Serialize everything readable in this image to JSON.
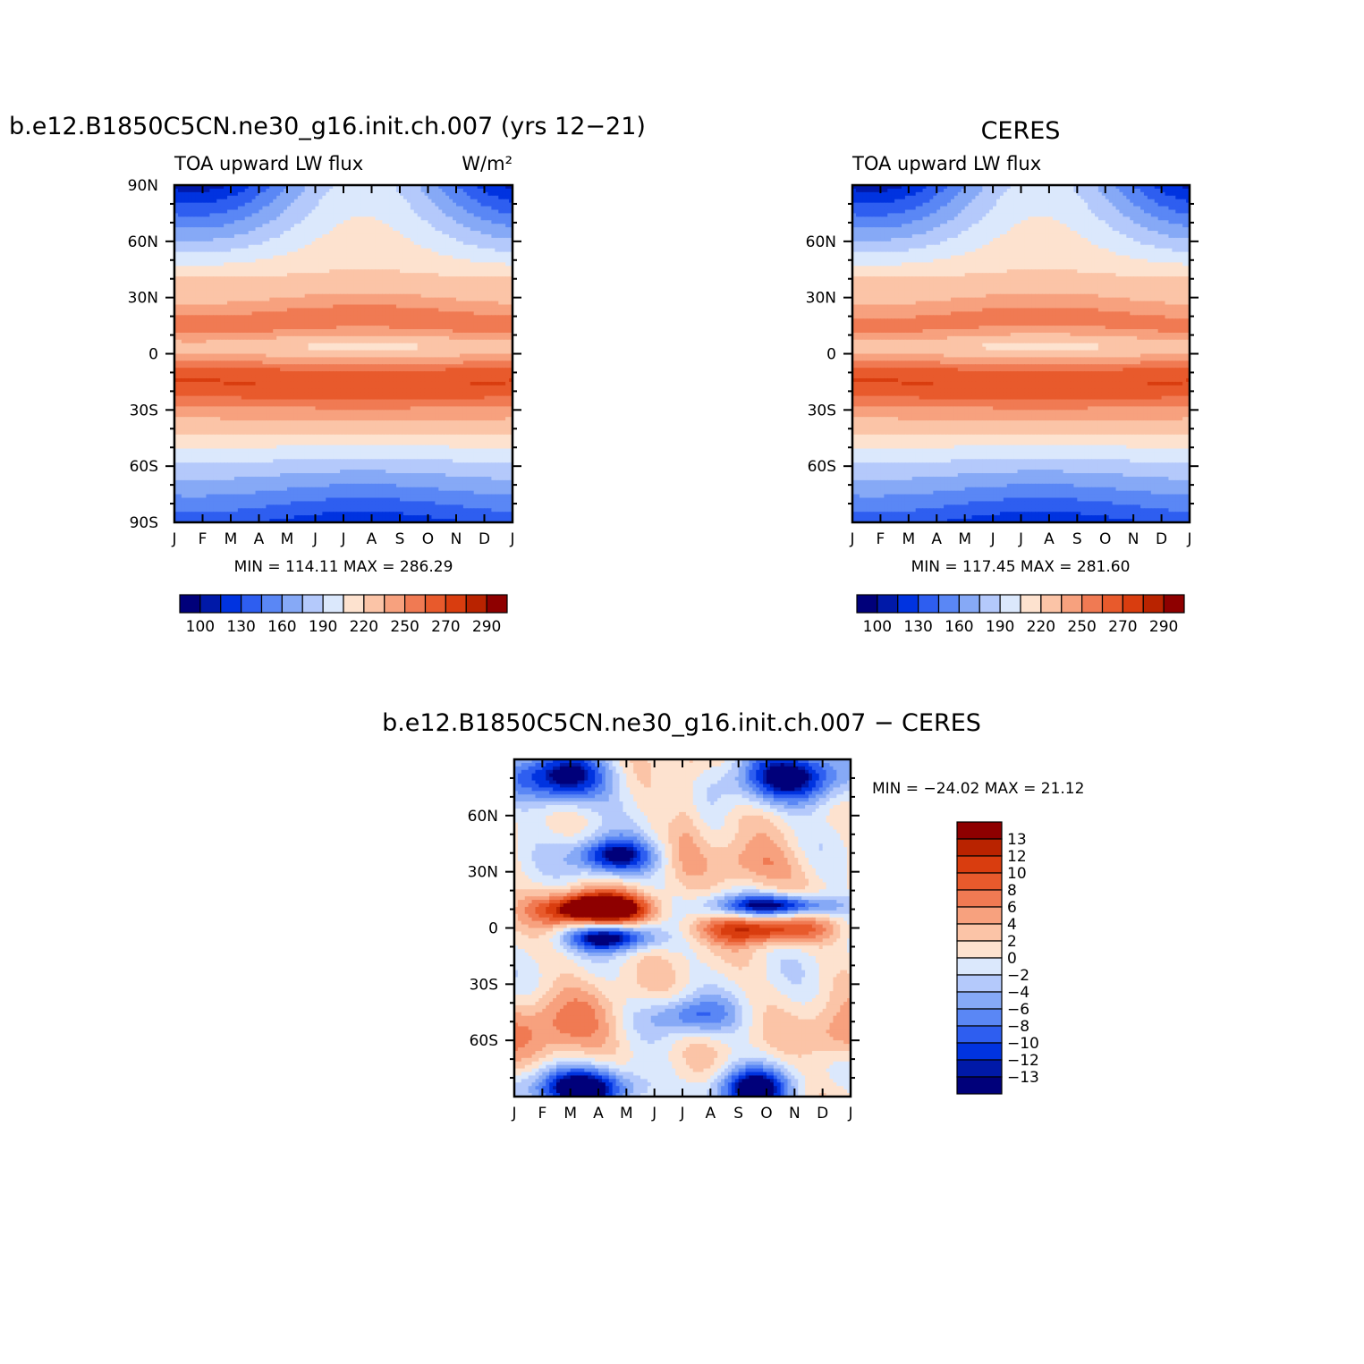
{
  "months": [
    "J",
    "F",
    "M",
    "A",
    "M",
    "J",
    "J",
    "A",
    "S",
    "O",
    "N",
    "D",
    "J"
  ],
  "colors": {
    "blue_scale": [
      "#00007a",
      "#0019a8",
      "#0033e0",
      "#2e5ef0",
      "#5a87f5",
      "#86a9f6",
      "#b4c9fb",
      "#dbe8fc"
    ],
    "red_scale": [
      "#fde2cf",
      "#fbc4a7",
      "#f7a17e",
      "#f07a53",
      "#e85a2c",
      "#d93d0f",
      "#b92300",
      "#8e0000"
    ],
    "frame": "#000000"
  },
  "panel_model": {
    "title": "b.e12.B1850C5CN.ne30_g16.init.ch.007 (yrs 12−21)",
    "left_label": "TOA upward LW flux",
    "units": "W/m²",
    "y_ticks": [
      "90N",
      "60N",
      "30N",
      "0",
      "30S",
      "60S",
      "90S"
    ],
    "stats": "MIN =  114.11  MAX =  286.29",
    "colorbar_labels": [
      "100",
      "130",
      "160",
      "190",
      "220",
      "250",
      "270",
      "290"
    ]
  },
  "panel_obs": {
    "title": "CERES",
    "left_label": "TOA upward LW flux",
    "y_ticks": [
      "60N",
      "30N",
      "0",
      "30S",
      "60S"
    ],
    "stats": "MIN =  117.45  MAX =  281.60",
    "colorbar_labels": [
      "100",
      "130",
      "160",
      "190",
      "220",
      "250",
      "270",
      "290"
    ]
  },
  "panel_diff": {
    "title": "b.e12.B1850C5CN.ne30_g16.init.ch.007 − CERES",
    "y_ticks": [
      "60N",
      "30N",
      "0",
      "30S",
      "60S"
    ],
    "stats": "MIN = −24.02  MAX =   21.12",
    "colorbar_labels": [
      "13",
      "12",
      "10",
      "8",
      "6",
      "4",
      "2",
      "0",
      "−2",
      "−4",
      "−6",
      "−8",
      "−10",
      "−12",
      "−13"
    ],
    "colorbar_colors": [
      "#8e0000",
      "#b92300",
      "#d93d0f",
      "#e85a2c",
      "#f07a53",
      "#f7a17e",
      "#fbc4a7",
      "#fde2cf",
      "#dbe8fc",
      "#b4c9fb",
      "#86a9f6",
      "#5a87f5",
      "#2e5ef0",
      "#0033e0",
      "#0019a8",
      "#00007a"
    ]
  },
  "chart_data": [
    {
      "type": "heatmap",
      "title": "b.e12.B1850C5CN.ne30_g16.init.ch.007 (yrs 12−21)",
      "variable": "TOA upward LW flux",
      "units": "W/m²",
      "x": [
        "J",
        "F",
        "M",
        "A",
        "M",
        "J",
        "J",
        "A",
        "S",
        "O",
        "N",
        "D",
        "J"
      ],
      "y_ticks": [
        "90N",
        "60N",
        "30N",
        "0",
        "30S",
        "60S",
        "90S"
      ],
      "ylim": [
        -90,
        90
      ],
      "min": 114.11,
      "max": 286.29,
      "levels": [
        100,
        115,
        130,
        145,
        160,
        175,
        190,
        205,
        220,
        235,
        250,
        260,
        270,
        280,
        290
      ],
      "latitudes": [
        90,
        80,
        70,
        60,
        50,
        40,
        30,
        20,
        10,
        0,
        -10,
        -20,
        -30,
        -40,
        -50,
        -60,
        -70,
        -80,
        -90
      ],
      "monthly_peak_lat": [
        -12,
        -10,
        -6,
        0,
        6,
        10,
        14,
        16,
        13,
        8,
        2,
        -6,
        -12
      ],
      "profile_by_lat": [
        160,
        175,
        195,
        210,
        230,
        250,
        265,
        280,
        240,
        250,
        262,
        275,
        262,
        245,
        228,
        205,
        178,
        150,
        125
      ]
    },
    {
      "type": "heatmap",
      "title": "CERES",
      "variable": "TOA upward LW flux",
      "units": "W/m²",
      "x": [
        "J",
        "F",
        "M",
        "A",
        "M",
        "J",
        "J",
        "A",
        "S",
        "O",
        "N",
        "D",
        "J"
      ],
      "y_ticks": [
        "60N",
        "30N",
        "0",
        "30S",
        "60S"
      ],
      "ylim": [
        -90,
        90
      ],
      "min": 117.45,
      "max": 281.6,
      "levels": [
        100,
        115,
        130,
        145,
        160,
        175,
        190,
        205,
        220,
        235,
        250,
        260,
        270,
        280,
        290
      ],
      "latitudes": [
        90,
        80,
        70,
        60,
        50,
        40,
        30,
        20,
        10,
        0,
        -10,
        -20,
        -30,
        -40,
        -50,
        -60,
        -70,
        -80,
        -90
      ],
      "profile_by_lat": [
        165,
        180,
        198,
        212,
        232,
        250,
        262,
        272,
        245,
        252,
        262,
        272,
        262,
        245,
        228,
        205,
        178,
        150,
        128
      ]
    },
    {
      "type": "heatmap",
      "title": "b.e12.B1850C5CN.ne30_g16.init.ch.007 − CERES",
      "x": [
        "J",
        "F",
        "M",
        "A",
        "M",
        "J",
        "J",
        "A",
        "S",
        "O",
        "N",
        "D",
        "J"
      ],
      "y_ticks": [
        "60N",
        "30N",
        "0",
        "30S",
        "60S"
      ],
      "ylim": [
        -90,
        90
      ],
      "min": -24.02,
      "max": 21.12,
      "levels": [
        -13,
        -12,
        -10,
        -8,
        -6,
        -4,
        -2,
        0,
        2,
        4,
        6,
        8,
        10,
        12,
        13
      ],
      "features": [
        {
          "months": "F-M",
          "lat": 10,
          "value": 21
        },
        {
          "months": "M-A",
          "lat": 38,
          "value": -14
        },
        {
          "months": "M-A",
          "lat": -5,
          "value": -14
        },
        {
          "months": "S-N",
          "lat": 12,
          "value": -14
        },
        {
          "months": "S-O",
          "lat": 0,
          "value": 10
        },
        {
          "months": "J-A",
          "lat": 80,
          "value": -16
        },
        {
          "months": "J-A",
          "lat": -85,
          "value": -18
        },
        {
          "months": "S",
          "lat": -85,
          "value": -16
        },
        {
          "months": "J-A",
          "lat": -47,
          "value": -9
        }
      ]
    }
  ]
}
